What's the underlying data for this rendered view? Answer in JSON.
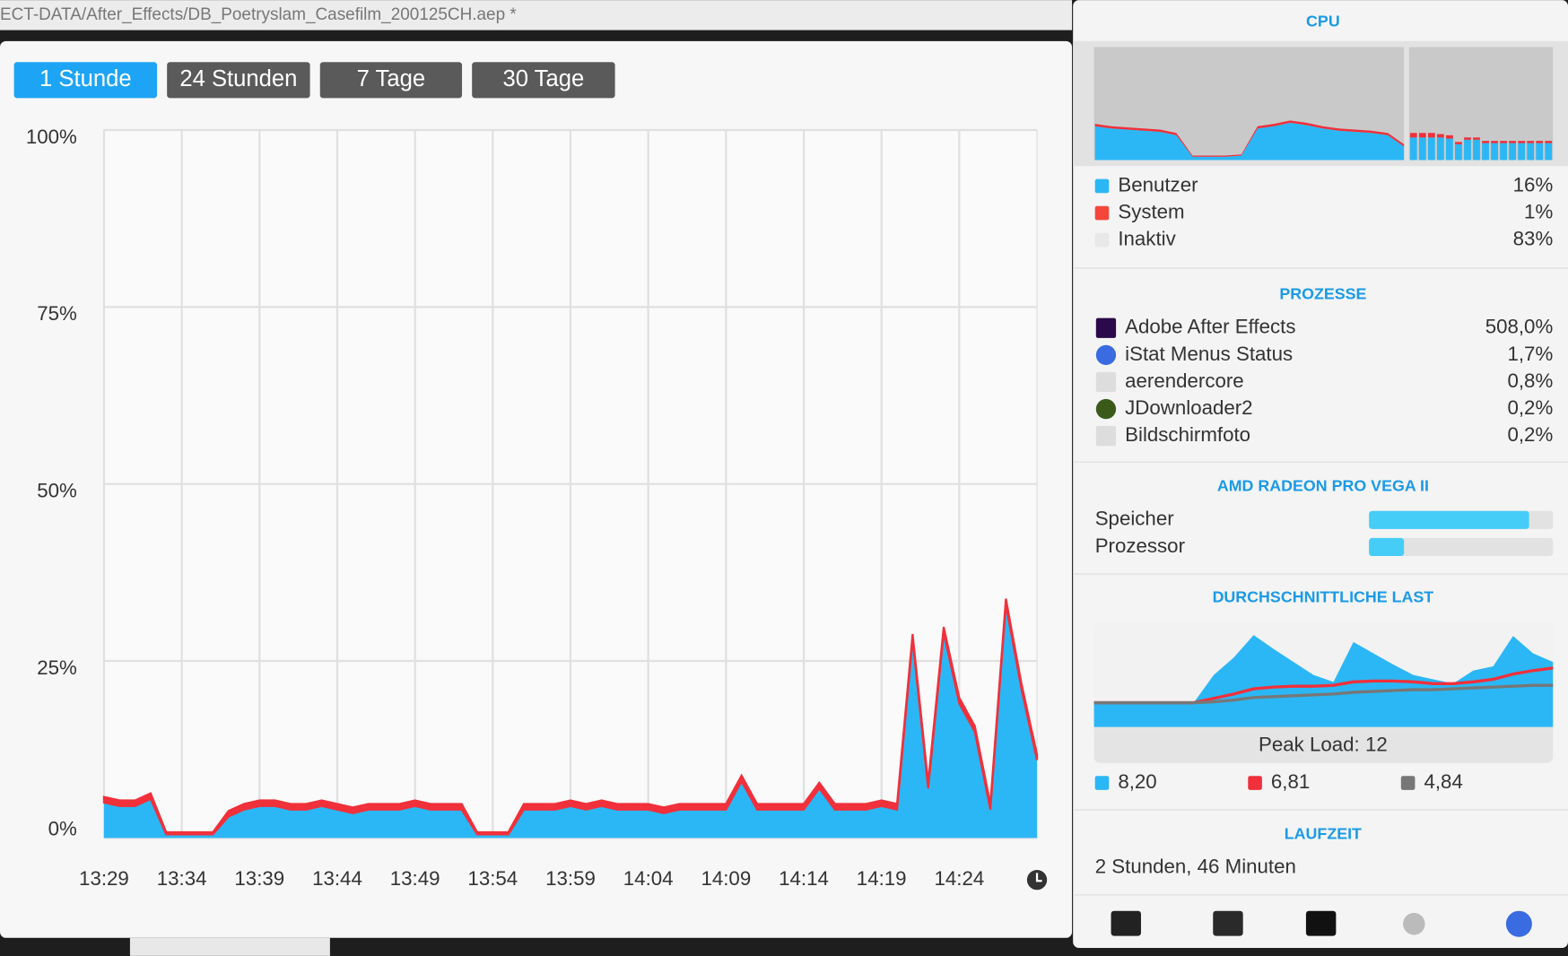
{
  "window_title": "ECT-DATA/After_Effects/DB_Poetryslam_Casefilm_200125CH.aep *",
  "tabs": [
    "1 Stunde",
    "24 Stunden",
    "7 Tage",
    "30 Tage"
  ],
  "chart_data": {
    "type": "area",
    "stacked": true,
    "categories": [
      "13:29",
      null,
      null,
      null,
      null,
      "13:34",
      null,
      null,
      null,
      null,
      "13:39",
      null,
      null,
      null,
      null,
      "13:44",
      null,
      null,
      null,
      null,
      "13:49",
      null,
      null,
      null,
      null,
      "13:54",
      null,
      null,
      null,
      null,
      "13:59",
      null,
      null,
      null,
      null,
      "14:04",
      null,
      null,
      null,
      null,
      "14:09",
      null,
      null,
      null,
      null,
      "14:14",
      null,
      null,
      null,
      null,
      "14:19",
      null,
      null,
      null,
      null,
      "14:24",
      null,
      null,
      null,
      null,
      null
    ],
    "series": [
      {
        "color": "#2bb7f5",
        "values": [
          5,
          4.5,
          4.5,
          5.5,
          0.5,
          0.5,
          0.5,
          0.5,
          3,
          4,
          4.5,
          4.5,
          4,
          4,
          4.5,
          4,
          3.5,
          4,
          4,
          4,
          4.5,
          4,
          4,
          4,
          0.5,
          0.5,
          0.5,
          4,
          4,
          4,
          4.5,
          4,
          4.5,
          4,
          4,
          4,
          3.5,
          4,
          4,
          4,
          4,
          8,
          4,
          4,
          4,
          4,
          7,
          4,
          4,
          4,
          4.5,
          4,
          28,
          7,
          29,
          19,
          15,
          4,
          33,
          21,
          11
        ]
      },
      {
        "color": "#f0303a",
        "values": [
          0.8,
          0.8,
          0.8,
          0.8,
          0.3,
          0.3,
          0.3,
          0.3,
          0.8,
          0.8,
          0.8,
          0.8,
          0.8,
          0.8,
          0.8,
          0.8,
          0.8,
          0.8,
          0.8,
          0.8,
          0.8,
          0.8,
          0.8,
          0.8,
          0.3,
          0.3,
          0.3,
          0.8,
          0.8,
          0.8,
          0.8,
          0.8,
          0.8,
          0.8,
          0.8,
          0.8,
          0.8,
          0.8,
          0.8,
          0.8,
          0.8,
          0.8,
          0.8,
          0.8,
          0.8,
          0.8,
          0.8,
          0.8,
          0.8,
          0.8,
          0.8,
          0.8,
          0.8,
          0.8,
          0.8,
          0.8,
          0.8,
          0.8,
          0.8,
          0.8,
          0.8
        ]
      }
    ],
    "ylim": [
      0,
      100
    ],
    "yticks": [
      {
        "value": 0,
        "label": "0%"
      },
      {
        "value": 25,
        "label": "25%"
      },
      {
        "value": 50,
        "label": "50%"
      },
      {
        "value": 75,
        "label": "75%"
      },
      {
        "value": 100,
        "label": "100%"
      }
    ],
    "grid": true
  },
  "sidebar": {
    "cpu": {
      "title": "CPU",
      "ylim": [
        0,
        100
      ],
      "history": [
        {
          "color": "#2bb7f5",
          "values": [
            30,
            28,
            27,
            26,
            25,
            22,
            3,
            3,
            3,
            4,
            28,
            30,
            33,
            31,
            28,
            26,
            25,
            24,
            22,
            12
          ]
        },
        {
          "color": "#f0303a",
          "values": [
            2,
            2,
            2,
            2,
            2,
            2,
            1,
            1,
            1,
            1,
            2,
            2,
            2,
            2,
            2,
            2,
            2,
            2,
            2,
            2
          ]
        }
      ],
      "cores": [
        {
          "color": "#2bb7f5",
          "values": [
            20,
            20,
            20,
            20,
            19,
            14,
            18,
            18,
            15,
            15,
            15,
            15,
            15,
            15,
            15,
            15
          ]
        },
        {
          "color": "#f0303a",
          "values": [
            4,
            4,
            4,
            3,
            3,
            2,
            2,
            2,
            2,
            2,
            2,
            2,
            2,
            2,
            2,
            2
          ]
        }
      ],
      "legend": [
        {
          "name": "Benutzer",
          "color": "#2bb7f5",
          "value": "16%"
        },
        {
          "name": "System",
          "color": "#f4473a",
          "value": "1%"
        },
        {
          "name": "Inaktiv",
          "color": "#e8e8e8",
          "value": "83%"
        }
      ]
    },
    "processes": {
      "title": "PROZESSE",
      "rows": [
        {
          "name": "Adobe After Effects",
          "value": "508,0%"
        },
        {
          "name": "iStat Menus Status",
          "value": "1,7%"
        },
        {
          "name": "aerendercore",
          "value": "0,8%"
        },
        {
          "name": "JDownloader2",
          "value": "0,2%"
        },
        {
          "name": "Bildschirmfoto",
          "value": "0,2%"
        }
      ]
    },
    "gpu": {
      "title": "AMD RADEON PRO VEGA II",
      "color": "#45cdf7",
      "bars": [
        {
          "name": "Speicher",
          "value": 87
        },
        {
          "name": "Prozessor",
          "value": 19
        }
      ],
      "xlim": [
        0,
        100
      ]
    },
    "load": {
      "title": "DURCHSCHNITTLICHE LAST",
      "peak": "Peak Load: 12",
      "ylim": [
        0,
        12
      ],
      "series": [
        {
          "color": "#2bb7f5",
          "label": "8,20",
          "values": [
            2.8,
            2.8,
            2.8,
            2.8,
            2.8,
            2.8,
            6,
            8,
            10.6,
            9,
            7.5,
            6,
            5.2,
            9.8,
            8.5,
            7.2,
            6,
            5.5,
            5,
            6.5,
            7,
            10.5,
            8.5,
            7.5
          ]
        },
        {
          "color": "#f0303a",
          "label": "6,81",
          "values": [
            2.8,
            2.8,
            2.8,
            2.8,
            2.8,
            2.8,
            3.3,
            3.8,
            4.4,
            4.6,
            4.7,
            4.7,
            4.8,
            5.2,
            5.3,
            5.3,
            5.2,
            5,
            5,
            5.2,
            5.5,
            6.1,
            6.5,
            6.8
          ]
        },
        {
          "color": "#777777",
          "label": "4,84",
          "values": [
            2.8,
            2.8,
            2.8,
            2.8,
            2.8,
            2.8,
            2.9,
            3.1,
            3.4,
            3.5,
            3.6,
            3.7,
            3.8,
            4,
            4.1,
            4.2,
            4.3,
            4.3,
            4.4,
            4.5,
            4.6,
            4.7,
            4.8,
            4.8
          ]
        }
      ]
    },
    "uptime": {
      "title": "LAUFZEIT",
      "value": "2 Stunden, 46 Minuten"
    }
  }
}
